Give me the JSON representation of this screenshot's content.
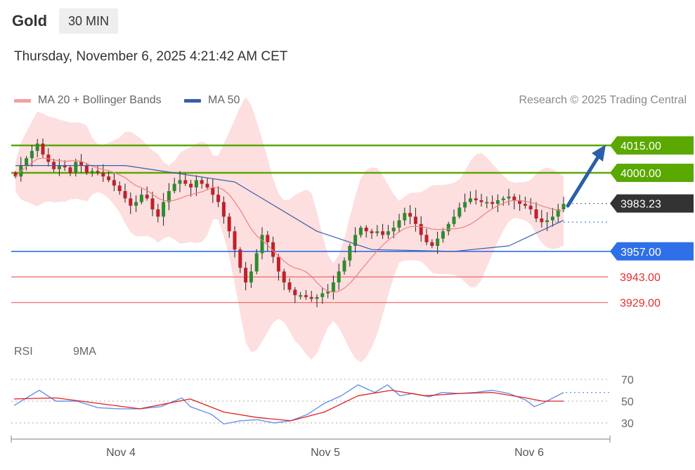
{
  "header": {
    "instrument": "Gold",
    "timeframe": "30 MIN",
    "datetime": "Thursday, November 6, 2025 4:21:42 AM CET"
  },
  "legend": {
    "ma20_bb": "MA 20 + Bollinger Bands",
    "ma50": "MA 50",
    "credit": "Research © 2025 Trading Central",
    "rsi": "RSI",
    "rsi_ma": "9MA"
  },
  "colors": {
    "up": "#2e8b2e",
    "down": "#c0212a",
    "bb_fill": "#fdd9d9",
    "ma20": "#f08080",
    "ma50": "#3a5fa8",
    "resistance": "#5aa800",
    "pivot": "#2f6fe8",
    "support": "#f07070",
    "current": "#333333",
    "arrow": "#2a5fa8",
    "rsi": "#6a8fe8",
    "rsi_ma": "#e02020"
  },
  "chart_data": [
    {
      "type": "candlestick",
      "x_ticks": [
        "Nov 4",
        "Nov 5",
        "Nov 6"
      ],
      "y_range": [
        3920,
        4025
      ],
      "levels": [
        {
          "kind": "resistance",
          "value": 4015.0,
          "label": "4015.00"
        },
        {
          "kind": "resistance",
          "value": 4000.0,
          "label": "4000.00"
        },
        {
          "kind": "current",
          "value": 3983.23,
          "label": "3983.23"
        },
        {
          "kind": "pivot",
          "value": 3957.0,
          "label": "3957.00"
        },
        {
          "kind": "support",
          "value": 3943.0,
          "label": "3943.00"
        },
        {
          "kind": "support",
          "value": 3929.0,
          "label": "3929.00"
        }
      ],
      "close_series": [
        3998,
        4004,
        4008,
        4012,
        4016,
        4010,
        4006,
        4002,
        4004,
        4003,
        4000,
        4006,
        4004,
        4000,
        4001,
        4000,
        3998,
        3996,
        3993,
        3990,
        3986,
        3982,
        3984,
        3988,
        3986,
        3980,
        3976,
        3984,
        3990,
        3994,
        3996,
        3994,
        3992,
        3996,
        3994,
        3992,
        3988,
        3984,
        3976,
        3968,
        3958,
        3948,
        3940,
        3946,
        3956,
        3966,
        3962,
        3954,
        3946,
        3940,
        3936,
        3933,
        3933,
        3932,
        3931,
        3932,
        3934,
        3935,
        3940,
        3946,
        3952,
        3960,
        3966,
        3970,
        3968,
        3967,
        3968,
        3966,
        3968,
        3970,
        3974,
        3978,
        3976,
        3972,
        3966,
        3962,
        3960,
        3964,
        3968,
        3972,
        3976,
        3981,
        3984,
        3986,
        3985,
        3984,
        3984,
        3983,
        3985,
        3986,
        3987,
        3985,
        3983,
        3982,
        3980,
        3975,
        3973,
        3974,
        3976,
        3980,
        3983
      ],
      "ma50_anchor_points": [
        [
          0,
          4004
        ],
        [
          20,
          4004
        ],
        [
          40,
          3995
        ],
        [
          55,
          3968
        ],
        [
          65,
          3958
        ],
        [
          80,
          3957
        ],
        [
          90,
          3960
        ],
        [
          100,
          3974
        ]
      ],
      "extra_series": [
        {
          "name": "MA 20 + Bollinger Bands"
        },
        {
          "name": "MA 50"
        }
      ]
    },
    {
      "type": "line",
      "x_ticks": [
        "Nov 4",
        "Nov 5",
        "Nov 6"
      ],
      "y_ticks": [
        70,
        50,
        30
      ],
      "y_range": [
        22,
        76
      ],
      "series": [
        {
          "name": "RSI",
          "values": [
            53,
            56,
            58,
            62,
            60,
            57,
            55,
            52,
            53,
            51,
            49,
            48,
            47,
            44,
            42,
            44,
            45,
            46,
            48,
            50,
            53,
            55,
            57,
            53,
            52,
            50,
            48,
            50,
            52,
            50,
            48,
            45,
            40,
            34,
            30,
            35,
            38,
            36,
            34,
            33,
            32,
            30,
            31,
            34,
            37,
            40,
            42,
            45,
            50,
            55,
            60,
            66,
            62,
            60,
            58,
            60,
            62,
            64,
            60,
            57,
            54,
            55,
            58,
            60,
            62,
            60,
            58,
            56,
            59,
            62,
            60,
            58,
            56,
            57,
            59,
            60,
            58,
            56,
            55,
            53,
            52,
            50,
            48,
            52,
            56,
            58
          ],
          "anchor_points": [
            [
              0,
              46
            ],
            [
              3,
              53
            ],
            [
              6,
              60
            ],
            [
              10,
              50
            ],
            [
              15,
              50
            ],
            [
              20,
              44
            ],
            [
              25,
              43
            ],
            [
              30,
              43
            ],
            [
              35,
              45
            ],
            [
              40,
              53
            ],
            [
              42,
              45
            ],
            [
              47,
              38
            ],
            [
              50,
              29
            ],
            [
              54,
              32
            ],
            [
              58,
              33
            ],
            [
              62,
              30
            ],
            [
              66,
              32
            ],
            [
              70,
              38
            ],
            [
              74,
              48
            ],
            [
              78,
              55
            ],
            [
              82,
              65
            ],
            [
              86,
              58
            ],
            [
              89,
              65
            ],
            [
              92,
              55
            ],
            [
              95,
              57
            ],
            [
              99,
              54
            ],
            [
              102,
              58
            ],
            [
              106,
              57
            ],
            [
              110,
              58
            ],
            [
              114,
              60
            ],
            [
              118,
              57
            ],
            [
              122,
              51
            ],
            [
              124,
              45
            ],
            [
              126,
              48
            ],
            [
              128,
              52
            ],
            [
              131,
              58
            ]
          ]
        },
        {
          "name": "9MA",
          "anchor_points": [
            [
              0,
              52
            ],
            [
              10,
              53
            ],
            [
              20,
              48
            ],
            [
              30,
              43
            ],
            [
              42,
              52
            ],
            [
              50,
              40
            ],
            [
              58,
              35
            ],
            [
              66,
              32
            ],
            [
              74,
              40
            ],
            [
              82,
              55
            ],
            [
              90,
              60
            ],
            [
              98,
              55
            ],
            [
              106,
              57
            ],
            [
              114,
              58
            ],
            [
              122,
              53
            ],
            [
              126,
              50
            ],
            [
              131,
              50
            ]
          ]
        }
      ]
    }
  ]
}
